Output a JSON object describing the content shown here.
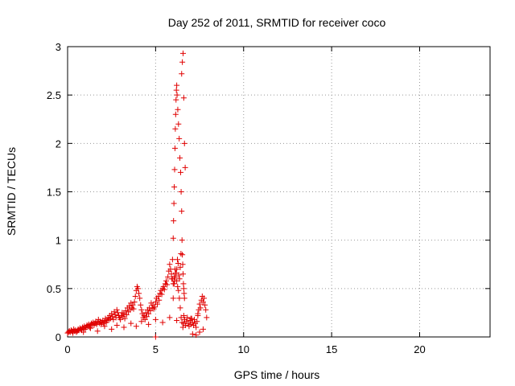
{
  "chart_data": {
    "type": "scatter",
    "title": "Day 252 of 2011, SRMTID for receiver coco",
    "xlabel": "GPS time / hours",
    "ylabel": "SRMTID / TECUs",
    "xlim": [
      0,
      24
    ],
    "ylim": [
      0,
      3
    ],
    "xticks": [
      0,
      5,
      10,
      15,
      20
    ],
    "yticks": [
      0,
      0.5,
      1,
      1.5,
      2,
      2.5,
      3
    ],
    "xtick_labels": [
      "0",
      "5",
      "10",
      "15",
      "20"
    ],
    "ytick_labels": [
      "0",
      "0.5",
      "1",
      "1.5",
      "2",
      "2.5",
      "3"
    ],
    "grid": true,
    "marker": "+",
    "color": "#e00000",
    "series": [
      {
        "name": "SRMTID",
        "x": [
          0.0,
          0.05,
          0.1,
          0.15,
          0.2,
          0.25,
          0.3,
          0.35,
          0.4,
          0.45,
          0.5,
          0.55,
          0.6,
          0.65,
          0.7,
          0.75,
          0.8,
          0.85,
          0.9,
          0.95,
          1.0,
          1.05,
          1.1,
          1.15,
          1.2,
          1.25,
          1.3,
          1.35,
          1.4,
          1.45,
          1.5,
          1.55,
          1.6,
          1.65,
          1.7,
          1.75,
          1.8,
          1.85,
          1.9,
          1.95,
          2.0,
          2.05,
          2.1,
          2.15,
          2.2,
          2.25,
          2.3,
          2.35,
          2.4,
          2.45,
          2.5,
          2.55,
          2.6,
          2.65,
          2.7,
          2.75,
          2.8,
          2.85,
          2.9,
          2.95,
          3.0,
          3.05,
          3.1,
          3.15,
          3.2,
          3.25,
          3.3,
          3.35,
          3.4,
          3.45,
          3.5,
          3.55,
          3.6,
          3.65,
          3.7,
          3.75,
          3.8,
          3.85,
          3.9,
          3.95,
          4.0,
          4.05,
          4.1,
          4.15,
          4.2,
          4.25,
          4.3,
          4.35,
          4.4,
          4.45,
          4.5,
          4.55,
          4.6,
          4.65,
          4.7,
          4.75,
          4.8,
          4.85,
          4.9,
          4.95,
          5.0,
          5.05,
          5.1,
          5.15,
          5.2,
          5.25,
          5.3,
          5.35,
          5.4,
          5.45,
          5.5,
          5.55,
          5.6,
          5.65,
          5.7,
          5.75,
          5.8,
          5.85,
          5.9,
          5.95,
          6.0,
          6.05,
          6.1,
          6.15,
          6.2,
          6.25,
          6.3,
          6.35,
          6.4,
          6.45,
          6.5,
          6.55,
          6.6,
          6.65,
          6.7,
          6.75,
          6.8,
          6.85,
          6.9,
          6.95,
          7.0,
          7.05,
          7.1,
          7.15,
          7.2,
          7.25,
          7.3,
          7.35,
          7.4,
          7.45,
          7.5,
          7.55,
          7.6,
          7.65,
          7.7,
          7.75,
          7.8,
          7.85,
          7.9,
          0.1,
          0.3,
          0.6,
          0.9,
          1.3,
          1.7,
          2.1,
          2.5,
          2.8,
          3.2,
          3.6,
          3.9,
          4.2,
          4.6,
          5.0,
          5.4,
          5.8,
          6.2,
          6.6,
          7.0,
          7.4,
          5.92,
          5.96,
          6.0,
          6.02,
          6.04,
          6.06,
          6.08,
          6.1,
          6.12,
          6.14,
          6.16,
          6.18,
          6.2,
          6.22,
          6.26,
          6.3,
          6.34,
          6.38,
          6.42,
          6.45,
          6.48,
          6.5,
          6.52,
          6.54,
          6.56,
          6.58,
          6.6,
          6.62,
          6.64,
          5.0,
          6.0,
          6.05,
          6.08,
          6.12,
          6.16,
          6.2,
          6.24,
          6.28,
          6.32,
          6.36,
          6.4,
          6.44,
          6.48,
          6.52,
          6.56,
          6.6,
          6.64,
          6.68,
          7.1,
          7.3,
          7.5,
          7.7
        ],
        "y": [
          0.04,
          0.05,
          0.06,
          0.05,
          0.07,
          0.06,
          0.05,
          0.08,
          0.06,
          0.07,
          0.05,
          0.06,
          0.08,
          0.07,
          0.09,
          0.08,
          0.07,
          0.1,
          0.09,
          0.11,
          0.08,
          0.1,
          0.12,
          0.11,
          0.13,
          0.1,
          0.12,
          0.14,
          0.13,
          0.15,
          0.12,
          0.14,
          0.16,
          0.13,
          0.15,
          0.18,
          0.14,
          0.16,
          0.13,
          0.15,
          0.17,
          0.14,
          0.16,
          0.19,
          0.15,
          0.17,
          0.2,
          0.18,
          0.22,
          0.19,
          0.24,
          0.21,
          0.18,
          0.26,
          0.23,
          0.2,
          0.28,
          0.25,
          0.22,
          0.2,
          0.18,
          0.22,
          0.25,
          0.21,
          0.24,
          0.19,
          0.27,
          0.23,
          0.3,
          0.26,
          0.32,
          0.28,
          0.35,
          0.3,
          0.33,
          0.29,
          0.36,
          0.42,
          0.48,
          0.52,
          0.5,
          0.45,
          0.4,
          0.33,
          0.28,
          0.24,
          0.2,
          0.22,
          0.18,
          0.25,
          0.21,
          0.28,
          0.24,
          0.3,
          0.27,
          0.35,
          0.3,
          0.33,
          0.29,
          0.31,
          0.36,
          0.4,
          0.34,
          0.42,
          0.38,
          0.45,
          0.48,
          0.44,
          0.5,
          0.52,
          0.49,
          0.55,
          0.58,
          0.54,
          0.62,
          0.68,
          0.75,
          0.7,
          0.65,
          0.6,
          0.55,
          0.62,
          0.7,
          0.66,
          0.58,
          0.52,
          0.48,
          0.4,
          0.3,
          0.2,
          0.15,
          0.1,
          0.14,
          0.18,
          0.12,
          0.16,
          0.2,
          0.14,
          0.11,
          0.17,
          0.13,
          0.19,
          0.15,
          0.12,
          0.18,
          0.14,
          0.1,
          0.16,
          0.22,
          0.28,
          0.34,
          0.3,
          0.38,
          0.42,
          0.36,
          0.4,
          0.33,
          0.28,
          0.2,
          0.06,
          0.04,
          0.07,
          0.05,
          0.09,
          0.06,
          0.11,
          0.08,
          0.12,
          0.1,
          0.14,
          0.11,
          0.16,
          0.13,
          0.18,
          0.15,
          0.2,
          0.17,
          0.22,
          0.19,
          0.24,
          0.6,
          0.8,
          1.02,
          1.2,
          1.38,
          1.55,
          1.73,
          1.95,
          2.15,
          2.3,
          2.45,
          2.55,
          2.6,
          2.5,
          2.35,
          2.2,
          2.05,
          1.85,
          1.7,
          1.5,
          1.3,
          1.0,
          0.85,
          0.75,
          0.65,
          0.55,
          0.5,
          0.45,
          0.4,
          0.0,
          0.4,
          0.55,
          0.58,
          0.62,
          0.66,
          0.7,
          0.8,
          0.76,
          0.64,
          0.6,
          0.72,
          0.86,
          2.72,
          2.84,
          2.93,
          2.47,
          2.0,
          1.75,
          0.03,
          0.02,
          0.05,
          0.08
        ]
      }
    ]
  }
}
